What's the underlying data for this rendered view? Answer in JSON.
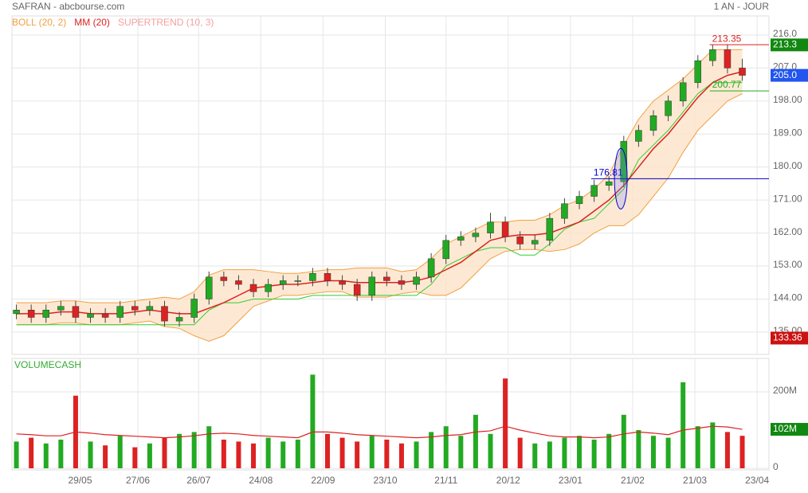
{
  "header": {
    "title": "SAFRAN - abcbourse.com",
    "period": "1 AN - JOUR"
  },
  "chart_data": [
    {
      "type": "candlestick",
      "up_color": "#22aa22",
      "down_color": "#dd2222",
      "open": [
        140,
        141,
        139,
        141,
        142,
        139,
        140,
        139,
        142,
        141,
        142,
        138,
        139,
        144,
        150,
        149,
        148,
        146,
        148,
        149,
        149,
        151,
        149,
        148,
        145,
        150,
        149,
        148,
        150,
        155,
        160,
        161,
        162,
        165,
        161,
        159,
        160,
        166,
        170,
        172,
        175,
        176,
        187,
        190,
        194,
        198,
        203,
        209,
        212,
        207
      ],
      "high": [
        142.5,
        142.5,
        142.5,
        143.5,
        143.5,
        141.5,
        141.5,
        143.5,
        143.5,
        143.5,
        143.5,
        140.5,
        145.5,
        151.5,
        151.5,
        150.5,
        149.5,
        149.5,
        150.5,
        150.5,
        152.5,
        152.5,
        150.5,
        149.5,
        151.5,
        151.5,
        150.5,
        151.5,
        156.5,
        161.5,
        162.5,
        163.5,
        167.5,
        166.5,
        162.5,
        161.5,
        167.5,
        171.5,
        173.5,
        176.5,
        177.5,
        188.5,
        191.5,
        195.5,
        199.5,
        204.5,
        210.5,
        213.35,
        213.5,
        209.5
      ],
      "low": [
        138.5,
        137.5,
        137.5,
        139.5,
        137.5,
        137.5,
        137.5,
        137.5,
        139.5,
        139.5,
        136.5,
        136.5,
        137.5,
        142.5,
        147.5,
        146.5,
        144.5,
        144.5,
        146.5,
        147.5,
        147.5,
        147.5,
        146.5,
        143.5,
        143.5,
        147.5,
        146.5,
        146.5,
        148.5,
        153.5,
        158.5,
        159.5,
        160.5,
        159.5,
        157.5,
        157.5,
        158.5,
        164.5,
        168.5,
        170.5,
        173.5,
        174.5,
        185.5,
        188.5,
        192.5,
        196.5,
        201.5,
        207.5,
        205.5,
        203.5
      ],
      "close": [
        141,
        139,
        141,
        142,
        139,
        140,
        139,
        142,
        141,
        142,
        138,
        139,
        144,
        150,
        149,
        148,
        146,
        148,
        149,
        149,
        151,
        149,
        148,
        145,
        150,
        149,
        148,
        150,
        155,
        160,
        161,
        162,
        165,
        161,
        159,
        160,
        166,
        170,
        172,
        175,
        176,
        187,
        190,
        194,
        198,
        203,
        209,
        212,
        207,
        205
      ],
      "overlays": [
        {
          "name": "BOLL (20, 2)",
          "color": "#f0a040",
          "fill": "#fde3c8",
          "upper": [
            143,
            143,
            143,
            143.5,
            143.5,
            143,
            143,
            143,
            143.5,
            144,
            144.5,
            144,
            146,
            150.5,
            152,
            152,
            152,
            151.5,
            151,
            151,
            151.5,
            152,
            152,
            152.5,
            152.5,
            152.5,
            151.5,
            152,
            155,
            159,
            161,
            163,
            165,
            165,
            165.5,
            165.5,
            167,
            169.5,
            171,
            174,
            178,
            186,
            193,
            198,
            201,
            204,
            208,
            212,
            212,
            212
          ],
          "lower": [
            137,
            137,
            137,
            137.5,
            137.5,
            137,
            137,
            137,
            137.5,
            138,
            136.5,
            136,
            134,
            132.5,
            134,
            138,
            142,
            143.5,
            145,
            145,
            145.5,
            146,
            146,
            144.5,
            144.5,
            144.5,
            145.5,
            146,
            145,
            145,
            147,
            151,
            155,
            157,
            157.5,
            157.5,
            157,
            157.5,
            159,
            162,
            164,
            164,
            167,
            172,
            177,
            184,
            190,
            194,
            198,
            200
          ]
        },
        {
          "name": "MM (20)",
          "color": "#dd2222",
          "values": [
            140,
            140,
            140,
            140.5,
            140.5,
            140,
            140,
            140,
            140.5,
            141,
            140.5,
            140,
            140,
            141.5,
            143,
            145,
            147,
            147.5,
            148,
            148,
            148.5,
            149,
            149,
            148.5,
            148.5,
            148.5,
            148.5,
            149,
            150,
            152,
            154,
            157,
            160,
            161,
            161.5,
            161.5,
            162,
            163.5,
            165,
            168,
            171,
            175,
            180,
            185,
            189,
            194,
            199,
            203,
            205,
            206
          ]
        },
        {
          "name": "SUPERTREND (10, 3)",
          "color": "#f4a0a0",
          "line_color": "#33cc33",
          "values": [
            137,
            137,
            137,
            137,
            137,
            137,
            137,
            137,
            137,
            137,
            137,
            137,
            137,
            141,
            143,
            143,
            144,
            144,
            144,
            144,
            145,
            145,
            145,
            145,
            145,
            145,
            145,
            145,
            148,
            153,
            155,
            157,
            158,
            158,
            156,
            156,
            159,
            163,
            165,
            166,
            170,
            174,
            182,
            186,
            190,
            195,
            200,
            203,
            203,
            203
          ]
        }
      ],
      "levels": [
        {
          "value": 213.35,
          "color": "#dd2222",
          "from": 46.8
        },
        {
          "value": 200.77,
          "color": "#22aa22",
          "from": 46.8
        },
        {
          "value": 176.81,
          "color": "#0000cc",
          "from": 38.8
        }
      ],
      "tags": [
        {
          "value": 213.3,
          "bg": "#118811"
        },
        {
          "value": 205,
          "label": "205.0",
          "bg": "#2255ee"
        },
        {
          "value": 133.36,
          "bg": "#cc1111"
        }
      ],
      "xlim": [
        -0.3,
        50.8
      ],
      "ylim": [
        128.9,
        221.2
      ],
      "yticks": [
        {
          "value": 135,
          "label": "135.00"
        },
        {
          "value": 144,
          "label": "144.00"
        },
        {
          "value": 153,
          "label": "153.00"
        },
        {
          "value": 162,
          "label": "162.00"
        },
        {
          "value": 171,
          "label": "171.00"
        },
        {
          "value": 180,
          "label": "180.00"
        },
        {
          "value": 189,
          "label": "189.00"
        },
        {
          "value": 198,
          "label": "198.00"
        },
        {
          "value": 207,
          "label": "207.0"
        },
        {
          "value": 216,
          "label": "216.0"
        }
      ],
      "grid": true
    },
    {
      "type": "bar",
      "title": "VOLUMECASH",
      "title_color": "#33aa33",
      "values": [
        70,
        80,
        65,
        75,
        190,
        70,
        60,
        85,
        55,
        65,
        80,
        90,
        95,
        110,
        75,
        70,
        65,
        80,
        70,
        75,
        245,
        90,
        80,
        70,
        85,
        75,
        65,
        70,
        95,
        110,
        85,
        140,
        90,
        235,
        80,
        65,
        70,
        80,
        85,
        75,
        90,
        140,
        100,
        85,
        80,
        225,
        110,
        120,
        95,
        85
      ],
      "ma": [
        90,
        88,
        85,
        85,
        95,
        92,
        88,
        86,
        84,
        82,
        80,
        82,
        85,
        90,
        92,
        90,
        86,
        84,
        82,
        80,
        95,
        95,
        92,
        88,
        86,
        84,
        82,
        80,
        82,
        86,
        88,
        95,
        98,
        110,
        100,
        92,
        85,
        82,
        82,
        80,
        82,
        90,
        95,
        92,
        88,
        100,
        105,
        110,
        108,
        102
      ],
      "ma_color": "#dd2222",
      "tag": {
        "value": 102,
        "label": "102M",
        "bg": "#118811"
      },
      "xlim": [
        -0.3,
        50.8
      ],
      "xticks": [
        {
          "value": 4.3,
          "label": "29/05"
        },
        {
          "value": 8.2,
          "label": "27/06"
        },
        {
          "value": 12.3,
          "label": "26/07"
        },
        {
          "value": 16.5,
          "label": "24/08"
        },
        {
          "value": 20.7,
          "label": "22/09"
        },
        {
          "value": 24.9,
          "label": "23/10"
        },
        {
          "value": 29,
          "label": "21/11"
        },
        {
          "value": 33.2,
          "label": "20/12"
        },
        {
          "value": 37.4,
          "label": "23/01"
        },
        {
          "value": 41.6,
          "label": "21/02"
        },
        {
          "value": 45.8,
          "label": "21/03"
        },
        {
          "value": 50,
          "label": "23/04"
        }
      ],
      "ylim": [
        0,
        287.5
      ],
      "yticks": [
        0,
        {
          "value": 200,
          "label": "200M"
        }
      ],
      "grid": true
    }
  ]
}
